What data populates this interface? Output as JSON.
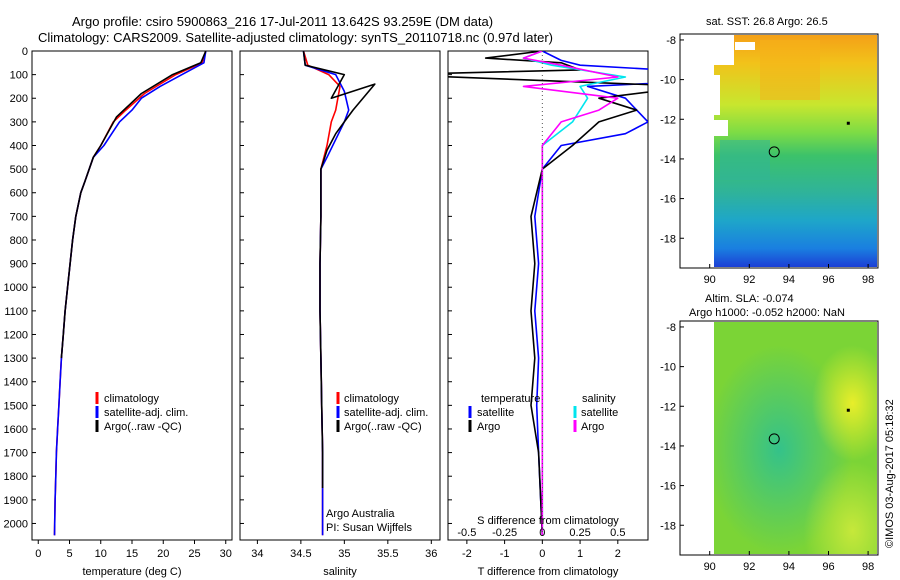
{
  "header": {
    "title_line1": "Argo profile: csiro 5900863_216 17-Jul-2011 13.642S 93.259E (DM data)",
    "title_line2": "Climatology: CARS2009. Satellite-adjusted climatology: synTS_20110718.nc (0.97d later)"
  },
  "credits": {
    "institution": "Argo Australia",
    "pi": "PI: Susan Wijffels"
  },
  "watermark": "©IMOS 03-Aug-2017 05:18:32",
  "colors": {
    "climatology": "#ff0000",
    "satellite": "#0000ff",
    "argo": "#000000",
    "sal_satellite": "#00e5ee",
    "sal_argo": "#ff00ff"
  },
  "chart_data": [
    {
      "type": "line",
      "name": "temperature-profile",
      "xlabel": "temperature (deg C)",
      "ylabel": "",
      "xlim": [
        -1,
        31
      ],
      "ylim": [
        2070,
        0
      ],
      "xticks": [
        0,
        5,
        10,
        15,
        20,
        25,
        30
      ],
      "yticks": [
        0,
        100,
        200,
        300,
        400,
        500,
        600,
        700,
        800,
        900,
        1000,
        1100,
        1200,
        1300,
        1400,
        1500,
        1600,
        1700,
        1800,
        1900,
        2000
      ],
      "legend": {
        "placement": "lower-middle",
        "entries": [
          "climatology",
          "satellite-adj. clim.",
          "Argo(..raw -QC)"
        ]
      },
      "series": [
        {
          "name": "climatology",
          "color": "#ff0000",
          "x": [
            26.8,
            26.2,
            22.0,
            17.0,
            14.0,
            12.0,
            10.0,
            8.8,
            7.5,
            6.8,
            6.0,
            5.5,
            5.1,
            4.7,
            4.3,
            4.0,
            3.7,
            3.5,
            3.3,
            3.1,
            2.9,
            2.8,
            2.7,
            2.6
          ],
          "y": [
            0,
            50,
            100,
            180,
            250,
            300,
            400,
            450,
            550,
            600,
            700,
            800,
            900,
            1000,
            1100,
            1200,
            1300,
            1400,
            1500,
            1600,
            1700,
            1800,
            1900,
            2050
          ]
        },
        {
          "name": "satellite-adj. clim.",
          "color": "#0000ff",
          "x": [
            26.8,
            26.5,
            23.0,
            19.5,
            16.5,
            15.0,
            13.0,
            10.5,
            8.8,
            7.5,
            6.8,
            6.0,
            5.5,
            5.1,
            4.7,
            4.3,
            4.0,
            3.7,
            3.5,
            3.3,
            3.1,
            2.9,
            2.8,
            2.7,
            2.6
          ],
          "y": [
            0,
            50,
            100,
            150,
            200,
            250,
            300,
            400,
            450,
            550,
            600,
            700,
            800,
            900,
            1000,
            1100,
            1200,
            1300,
            1400,
            1500,
            1600,
            1700,
            1800,
            1900,
            2050
          ]
        },
        {
          "name": "Argo(..raw -QC)",
          "color": "#000000",
          "x": [
            26.8,
            26.0,
            21.5,
            16.5,
            14.5,
            12.5,
            10.0,
            8.8,
            7.5,
            6.8,
            6.0,
            5.5,
            5.1,
            4.7,
            4.3,
            4.0,
            3.7
          ],
          "y": [
            0,
            50,
            100,
            180,
            230,
            280,
            400,
            450,
            550,
            600,
            700,
            800,
            900,
            1000,
            1100,
            1200,
            1300
          ]
        }
      ]
    },
    {
      "type": "line",
      "name": "salinity-profile",
      "xlabel": "salinity",
      "ylabel": "",
      "xlim": [
        33.8,
        36.1
      ],
      "ylim": [
        2070,
        0
      ],
      "xticks": [
        34,
        34.5,
        35,
        35.5,
        36
      ],
      "legend": {
        "placement": "lower-middle",
        "entries": [
          "climatology",
          "satellite-adj. clim.",
          "Argo(..raw -QC)"
        ]
      },
      "series": [
        {
          "name": "climatology",
          "color": "#ff0000",
          "x": [
            34.53,
            34.58,
            34.82,
            34.95,
            34.9,
            34.85,
            34.8,
            34.73,
            34.73,
            34.72,
            34.72,
            34.73,
            34.74,
            34.75,
            34.75,
            34.75,
            34.75
          ],
          "y": [
            0,
            60,
            100,
            150,
            250,
            300,
            400,
            500,
            700,
            900,
            1100,
            1300,
            1500,
            1700,
            1900,
            2000,
            2050
          ]
        },
        {
          "name": "satellite-adj. clim.",
          "color": "#0000ff",
          "x": [
            34.53,
            34.55,
            34.9,
            35.0,
            35.05,
            35.0,
            34.8,
            34.73,
            34.73,
            34.72,
            34.72,
            34.73,
            34.74,
            34.75,
            34.75,
            34.75
          ],
          "y": [
            0,
            60,
            100,
            170,
            250,
            300,
            450,
            500,
            700,
            900,
            1100,
            1300,
            1500,
            1700,
            1900,
            2050
          ]
        },
        {
          "name": "Argo(..raw -QC)",
          "color": "#000000",
          "x": [
            34.53,
            34.55,
            35.0,
            34.85,
            35.35,
            35.1,
            35.0,
            34.9,
            34.8,
            34.73,
            34.73,
            34.72,
            34.72,
            34.73,
            34.74,
            34.75,
            34.75
          ],
          "y": [
            0,
            60,
            100,
            200,
            140,
            250,
            300,
            350,
            420,
            500,
            700,
            900,
            1100,
            1300,
            1500,
            1700,
            1850
          ]
        }
      ]
    },
    {
      "type": "line",
      "name": "difference-profile",
      "xlabel": "T difference from climatology",
      "xlabel_top": "S difference from climatology",
      "xlim": [
        -2.5,
        2.8
      ],
      "ylim": [
        2070,
        0
      ],
      "xticks": [
        -2,
        -1,
        0,
        1,
        2
      ],
      "xticks_salinity": [
        -0.5,
        -0.25,
        0,
        0.25,
        0.5
      ],
      "legend": {
        "placement": "lower-middle",
        "columns": [
          "temperature",
          "salinity"
        ],
        "entries": [
          "satellite",
          "Argo",
          "satellite",
          "Argo"
        ]
      },
      "series": [
        {
          "name": "satellite",
          "variable": "temperature",
          "color": "#0000ff",
          "x": [
            0,
            0.5,
            1.0,
            6.5,
            1.2,
            2.2,
            2.5,
            2.8,
            2.2,
            0.5,
            0,
            -0.2,
            -0.1,
            -0.2,
            -0.1,
            -0.15,
            -0.1,
            0
          ],
          "y": [
            0,
            40,
            60,
            110,
            150,
            200,
            250,
            300,
            350,
            400,
            500,
            700,
            900,
            1100,
            1300,
            1500,
            1700,
            2050
          ]
        },
        {
          "name": "Argo",
          "variable": "temperature",
          "color": "#000000",
          "x": [
            0,
            -1.5,
            0.5,
            1.0,
            -4.0,
            4.0,
            1.5,
            2.5,
            1.5,
            0.8,
            0,
            -0.3,
            -0.2,
            -0.3,
            -0.2,
            -0.3,
            -0.1,
            0
          ],
          "y": [
            0,
            30,
            50,
            80,
            100,
            150,
            200,
            250,
            300,
            400,
            500,
            700,
            900,
            1100,
            1300,
            1500,
            1700,
            2050
          ]
        },
        {
          "name": "satellite",
          "variable": "salinity",
          "color": "#00e5ee",
          "x": [
            0,
            -0.5,
            0.25,
            2.2,
            1.0,
            1.2,
            0.8,
            0,
            0,
            0,
            0,
            0
          ],
          "y": [
            0,
            30,
            60,
            110,
            150,
            200,
            300,
            400,
            600,
            900,
            1500,
            2050
          ]
        },
        {
          "name": "Argo",
          "variable": "salinity",
          "color": "#ff00ff",
          "x": [
            0,
            -0.5,
            0.5,
            2.0,
            -0.5,
            2.0,
            1.5,
            0.5,
            0,
            0,
            0,
            0
          ],
          "y": [
            0,
            30,
            60,
            110,
            150,
            200,
            250,
            300,
            400,
            900,
            1500,
            2050
          ]
        }
      ]
    },
    {
      "type": "heatmap",
      "name": "sst-map",
      "title": "sat. SST: 26.8 Argo: 26.5",
      "xlim": [
        88.5,
        98.5
      ],
      "ylim": [
        -19.5,
        -7.7
      ],
      "xticks": [
        90,
        92,
        94,
        96,
        98
      ],
      "yticks": [
        -8,
        -10,
        -12,
        -14,
        -16,
        -18
      ],
      "profile_location": {
        "lon": 93.259,
        "lat": -13.642
      }
    },
    {
      "type": "heatmap",
      "name": "sla-map",
      "title": "Altim. SLA: -0.074",
      "subtitle": "Argo h1000: -0.052 h2000: NaN",
      "xlim": [
        88.5,
        98.5
      ],
      "ylim": [
        -19.5,
        -7.7
      ],
      "xticks": [
        90,
        92,
        94,
        96,
        98
      ],
      "yticks": [
        -8,
        -10,
        -12,
        -14,
        -16,
        -18
      ],
      "profile_location": {
        "lon": 93.259,
        "lat": -13.642
      }
    }
  ]
}
